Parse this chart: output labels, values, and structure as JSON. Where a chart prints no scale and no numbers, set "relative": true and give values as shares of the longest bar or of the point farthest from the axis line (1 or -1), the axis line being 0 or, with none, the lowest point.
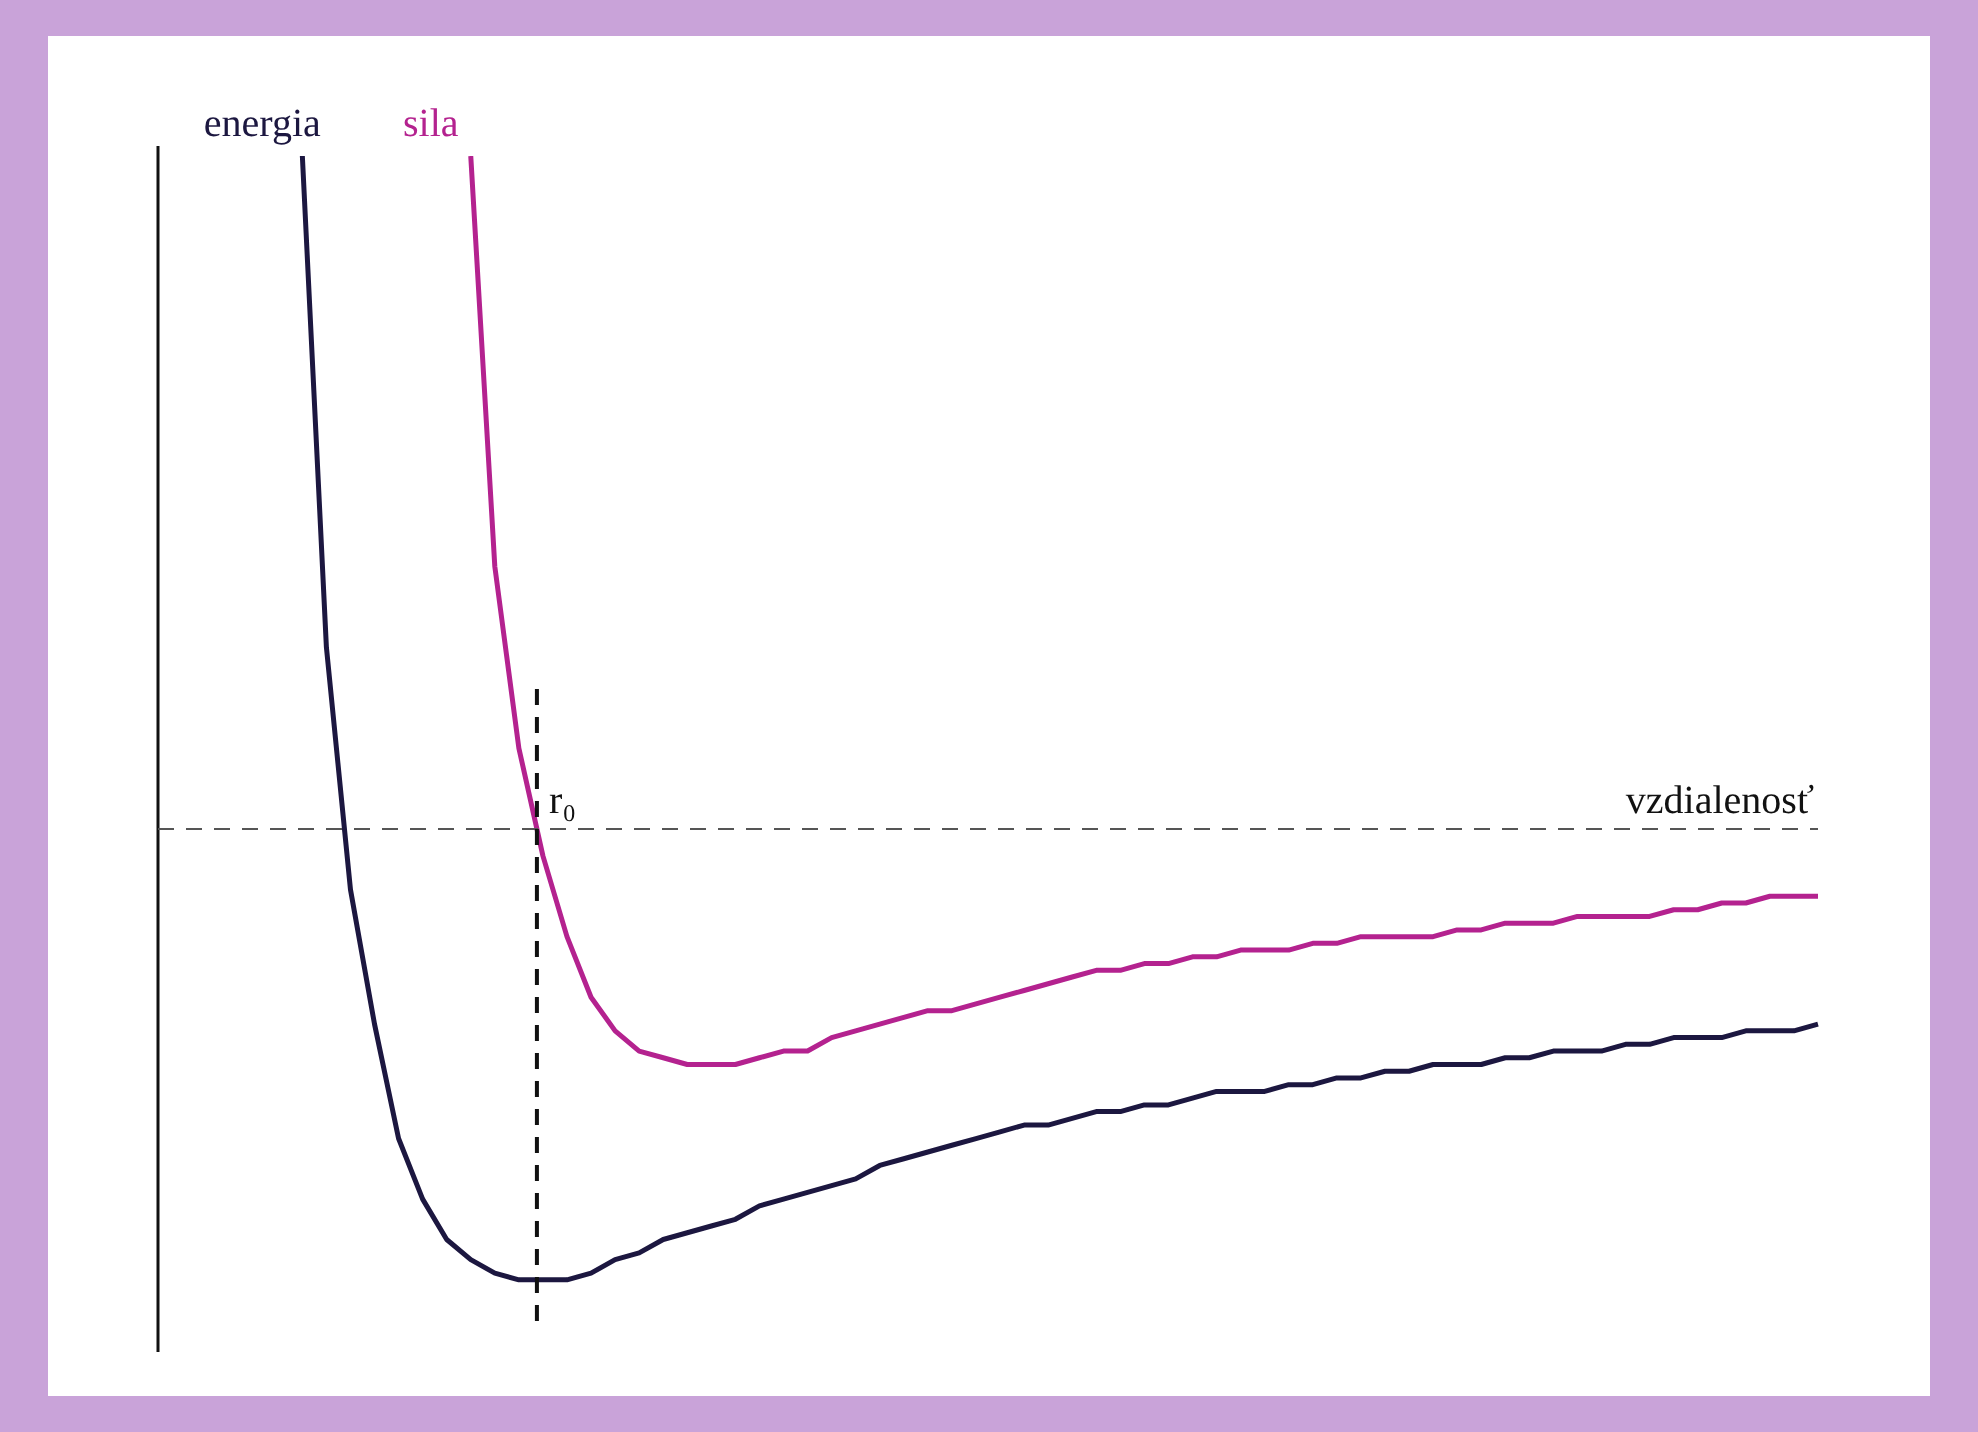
{
  "chart_data": {
    "type": "line",
    "relative": true,
    "xlabel": "vzdialenosť",
    "legend": false,
    "marker": "none",
    "line_style": "solid",
    "categories": [
      null,
      null,
      null,
      null,
      null,
      null,
      null,
      null,
      null,
      null,
      null,
      null,
      null,
      null,
      null,
      null,
      null,
      null,
      null,
      null,
      null,
      null,
      null,
      null,
      null,
      null,
      null,
      null,
      null,
      null,
      null,
      null,
      null,
      null,
      null,
      null,
      null,
      null,
      null,
      null,
      null,
      null,
      null,
      null,
      null,
      null,
      null,
      null,
      null,
      null,
      null,
      null,
      null,
      null,
      null,
      null,
      null,
      null,
      null,
      null,
      null,
      null,
      null,
      null,
      null,
      null,
      null,
      null,
      null,
      null
    ],
    "series": [
      {
        "name": "energia",
        "color": "#1c1740",
        "values": [
          null,
          null,
          null,
          null,
          null,
          null,
          1.0,
          0.27,
          -0.09,
          -0.29,
          -0.46,
          -0.55,
          -0.61,
          -0.64,
          -0.66,
          -0.67,
          -0.67,
          -0.67,
          -0.66,
          -0.64,
          -0.63,
          -0.61,
          -0.6,
          -0.59,
          -0.58,
          -0.56,
          -0.55,
          -0.54,
          -0.53,
          -0.52,
          -0.5,
          -0.49,
          -0.48,
          -0.47,
          -0.46,
          -0.45,
          -0.44,
          -0.44,
          -0.43,
          -0.42,
          -0.42,
          -0.41,
          -0.41,
          -0.4,
          -0.39,
          -0.39,
          -0.39,
          -0.38,
          -0.38,
          -0.37,
          -0.37,
          -0.36,
          -0.36,
          -0.35,
          -0.35,
          -0.35,
          -0.34,
          -0.34,
          -0.33,
          -0.33,
          -0.33,
          -0.32,
          -0.32,
          -0.31,
          -0.31,
          -0.31,
          -0.3,
          -0.3,
          -0.3,
          -0.29
        ]
      },
      {
        "name": "sila",
        "color": "#b4228f",
        "values": [
          null,
          null,
          null,
          null,
          null,
          null,
          null,
          null,
          null,
          null,
          null,
          null,
          null,
          1.0,
          0.39,
          0.12,
          -0.04,
          -0.16,
          -0.25,
          -0.3,
          -0.33,
          -0.34,
          -0.35,
          -0.35,
          -0.35,
          -0.34,
          -0.33,
          -0.33,
          -0.31,
          -0.3,
          -0.29,
          -0.28,
          -0.27,
          -0.27,
          -0.26,
          -0.25,
          -0.24,
          -0.23,
          -0.22,
          -0.21,
          -0.21,
          -0.2,
          -0.2,
          -0.19,
          -0.19,
          -0.18,
          -0.18,
          -0.18,
          -0.17,
          -0.17,
          -0.16,
          -0.16,
          -0.16,
          -0.16,
          -0.15,
          -0.15,
          -0.14,
          -0.14,
          -0.14,
          -0.13,
          -0.13,
          -0.13,
          -0.13,
          -0.12,
          -0.12,
          -0.11,
          -0.11,
          -0.1,
          -0.1,
          -0.1
        ]
      }
    ],
    "ref_lines": [
      {
        "axis": "y",
        "value": 0,
        "line_style": "dashed",
        "color": "#555555"
      }
    ],
    "annotations": [
      "r₀"
    ]
  }
}
